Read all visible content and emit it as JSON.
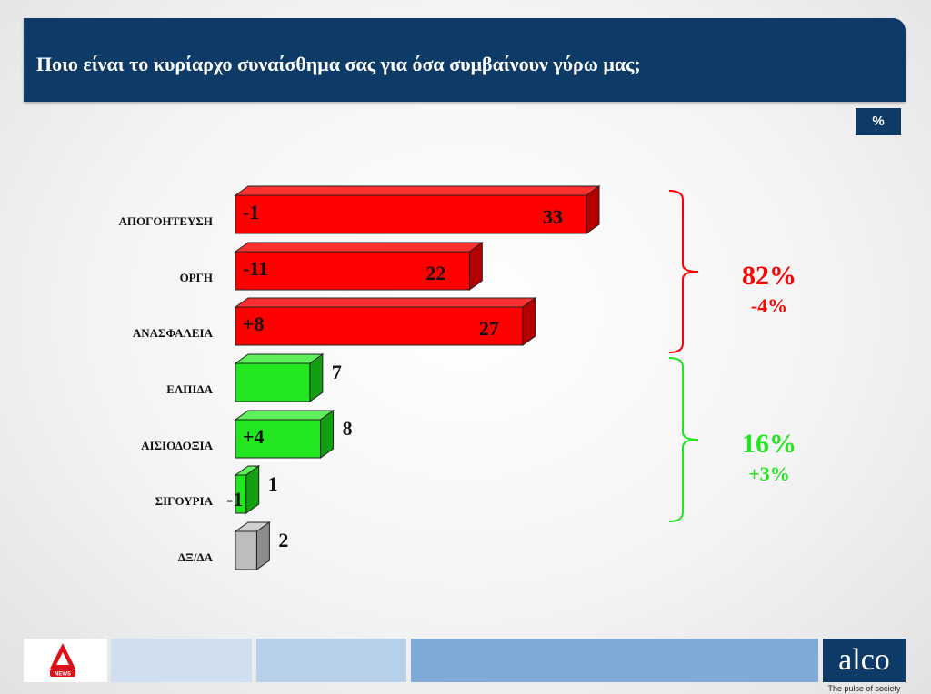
{
  "header": {
    "title": "Ποιο είναι το κυρίαρχο συναίσθημα σας για όσα συμβαίνουν γύρω μας;"
  },
  "unit_badge": "%",
  "colors": {
    "negative": "#ff0000",
    "negative_side": "#b50000",
    "positive": "#22e61f",
    "positive_side": "#12a012",
    "neutral": "#bdbdbd",
    "neutral_side": "#8c8c8c",
    "header_bg": "#0d3a66"
  },
  "chart_data": {
    "type": "bar",
    "orientation": "horizontal",
    "categories": [
      "ΑΠΟΓΟΗΤΕΥΣΗ",
      "ΟΡΓΗ",
      "ΑΝΑΣΦΑΛΕΙΑ",
      "ΕΛΠΙΔΑ",
      "ΑΙΣΙΟΔΟΞΙΑ",
      "ΣΙΓΟΥΡΙΑ",
      "ΔΞ/ΔΑ"
    ],
    "values": [
      33,
      22,
      27,
      7,
      8,
      1,
      2
    ],
    "changes": [
      "-1",
      "-11",
      "+8",
      "",
      "+4",
      "-1",
      ""
    ],
    "groups": [
      "negative",
      "negative",
      "negative",
      "positive",
      "positive",
      "positive",
      "neutral"
    ],
    "xlim": [
      0,
      33
    ],
    "summaries": [
      {
        "group": "negative",
        "total": "82%",
        "change": "-4%"
      },
      {
        "group": "positive",
        "total": "16%",
        "change": "+3%"
      }
    ]
  },
  "footer": {
    "brand": "alco",
    "tagline": "The pulse of society",
    "news_logo": "NEWS"
  }
}
